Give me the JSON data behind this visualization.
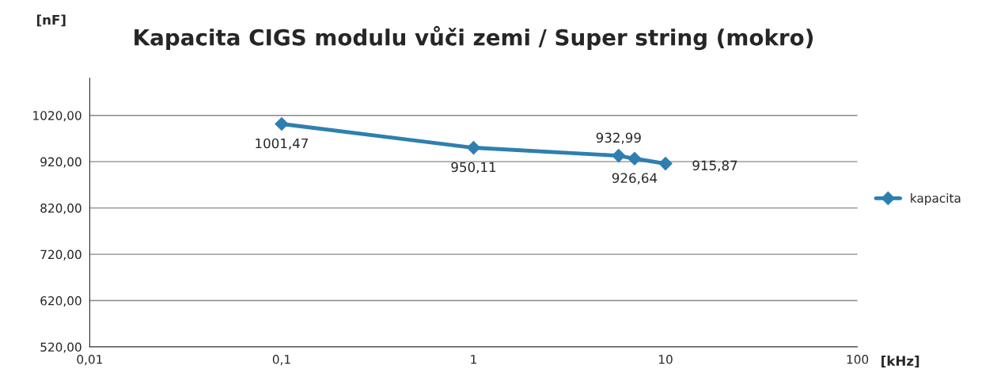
{
  "chart_data": {
    "type": "line",
    "title": "Kapacita CIGS modulu vůči zemi / Super string (mokro)",
    "ylabel": "[nF]",
    "xlabel": "[kHz]",
    "log": "x",
    "x": [
      0.1,
      1,
      5.7,
      6.9,
      10
    ],
    "series": [
      {
        "name": "kapacita",
        "color": "#2e7fb0",
        "values": [
          1001.47,
          950.11,
          932.99,
          926.64,
          915.87
        ],
        "value_labels": [
          "1001,47",
          "950,11",
          "932,99",
          "926,64",
          "915,87"
        ]
      }
    ],
    "xlim": [
      0.01,
      100
    ],
    "xticks": [
      {
        "value": 0.01,
        "label": "0,01"
      },
      {
        "value": 0.1,
        "label": "0,1"
      },
      1,
      10,
      100
    ],
    "ylim": [
      520,
      1100
    ],
    "yticks": [
      {
        "value": 520,
        "label": "520,00"
      },
      {
        "value": 620,
        "label": "620,00"
      },
      {
        "value": 720,
        "label": "720,00"
      },
      {
        "value": 820,
        "label": "820,00"
      },
      {
        "value": 920,
        "label": "920,00"
      },
      {
        "value": 1020,
        "label": "1020,00"
      }
    ],
    "grid": "y",
    "legend": "right",
    "marker": "diamond",
    "line_style": "solid"
  }
}
